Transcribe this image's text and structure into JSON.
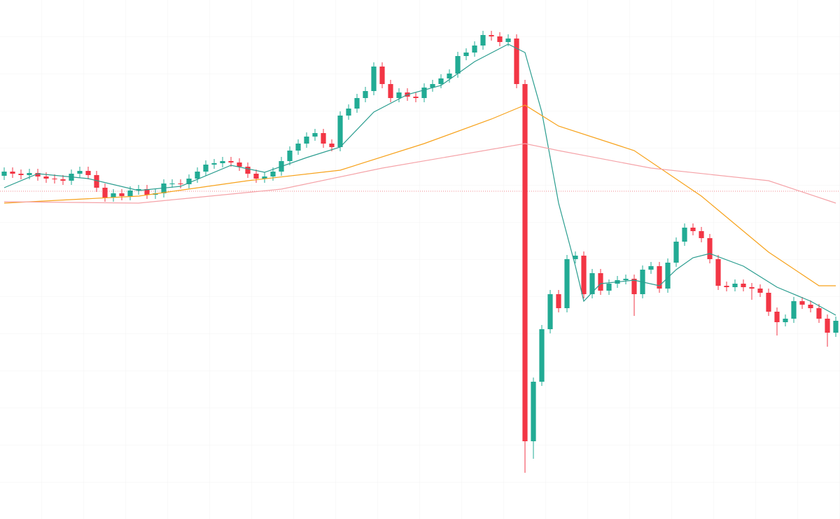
{
  "chart_data": {
    "type": "candlestick",
    "ylim": [
      0,
      741
    ],
    "up_color": "#22ab94",
    "down_color": "#f23645",
    "open": [
      490,
      496,
      493,
      491,
      494,
      489,
      486,
      485,
      483,
      493,
      497,
      491,
      473,
      459,
      465,
      461,
      469,
      471,
      463,
      465,
      479,
      479,
      478,
      486,
      496,
      506,
      508,
      511,
      509,
      503,
      493,
      486,
      489,
      496,
      511,
      526,
      536,
      546,
      551,
      536,
      531,
      576,
      586,
      601,
      611,
      646,
      621,
      601,
      609,
      603,
      601,
      616,
      621,
      629,
      636,
      661,
      666,
      676,
      691,
      689,
      681,
      686,
      621,
      111,
      196,
      271,
      321,
      301,
      371,
      376,
      321,
      351,
      326,
      336,
      341,
      343,
      321,
      356,
      361,
      329,
      366,
      396,
      416,
      411,
      401,
      371,
      333,
      331,
      336,
      331,
      329,
      323,
      296,
      281,
      286,
      311,
      306,
      301,
      286,
      266
    ],
    "high": [
      502,
      502,
      499,
      500,
      500,
      495,
      492,
      491,
      499,
      503,
      503,
      497,
      479,
      471,
      471,
      475,
      477,
      477,
      471,
      485,
      485,
      485,
      492,
      502,
      512,
      514,
      517,
      517,
      515,
      509,
      499,
      495,
      502,
      517,
      532,
      542,
      552,
      557,
      557,
      542,
      582,
      592,
      607,
      617,
      652,
      652,
      627,
      615,
      615,
      609,
      622,
      627,
      635,
      642,
      667,
      672,
      682,
      697,
      697,
      695,
      692,
      692,
      627,
      202,
      277,
      327,
      327,
      377,
      382,
      382,
      357,
      357,
      342,
      347,
      349,
      349,
      362,
      367,
      367,
      372,
      402,
      422,
      422,
      417,
      407,
      377,
      339,
      342,
      342,
      337,
      335,
      329,
      302,
      292,
      317,
      317,
      312,
      307,
      292,
      289
    ],
    "low": [
      484,
      487,
      485,
      485,
      483,
      480,
      479,
      477,
      477,
      487,
      485,
      467,
      453,
      453,
      455,
      455,
      463,
      457,
      457,
      459,
      473,
      472,
      472,
      480,
      490,
      500,
      502,
      503,
      497,
      487,
      480,
      480,
      483,
      490,
      505,
      520,
      530,
      540,
      530,
      525,
      525,
      570,
      580,
      595,
      605,
      615,
      595,
      595,
      597,
      595,
      595,
      610,
      615,
      623,
      630,
      655,
      660,
      670,
      683,
      675,
      675,
      615,
      66,
      86,
      190,
      265,
      295,
      295,
      365,
      315,
      315,
      320,
      320,
      330,
      335,
      290,
      315,
      350,
      323,
      323,
      360,
      390,
      405,
      395,
      365,
      327,
      325,
      325,
      325,
      313,
      317,
      290,
      262,
      275,
      280,
      300,
      295,
      280,
      246,
      260
    ],
    "close": [
      496,
      493,
      491,
      494,
      489,
      486,
      485,
      483,
      493,
      497,
      491,
      473,
      459,
      465,
      461,
      469,
      471,
      463,
      465,
      479,
      479,
      478,
      486,
      496,
      506,
      508,
      511,
      509,
      503,
      493,
      486,
      489,
      496,
      511,
      526,
      536,
      546,
      551,
      536,
      531,
      576,
      586,
      601,
      611,
      646,
      621,
      601,
      609,
      603,
      601,
      616,
      621,
      629,
      636,
      661,
      666,
      676,
      691,
      689,
      681,
      686,
      621,
      111,
      196,
      271,
      321,
      301,
      371,
      376,
      321,
      351,
      326,
      336,
      341,
      343,
      321,
      356,
      361,
      329,
      366,
      396,
      416,
      411,
      401,
      371,
      333,
      331,
      336,
      331,
      329,
      323,
      296,
      281,
      286,
      311,
      306,
      301,
      286,
      266,
      283
    ],
    "lines": [
      {
        "color": "#2a9d8f",
        "x": [
          0,
          4,
          10,
          16,
          21,
          27,
          31,
          36,
          40,
          44,
          48,
          52,
          56,
          60,
          62,
          64,
          66,
          68,
          69,
          71,
          75,
          78,
          80,
          82,
          84,
          88,
          92,
          96,
          99
        ],
        "values": [
          473,
          493,
          486,
          469,
          475,
          505,
          495,
          516,
          531,
          581,
          606,
          619,
          653,
          678,
          666,
          581,
          451,
          361,
          311,
          336,
          341,
          333,
          356,
          373,
          379,
          361,
          331,
          311,
          291
        ]
      },
      {
        "color": "#f7a21b",
        "x": [
          0,
          16,
          29,
          40,
          50,
          58,
          62,
          66,
          75,
          83,
          91,
          97,
          99
        ],
        "values": [
          451,
          461,
          483,
          498,
          536,
          571,
          591,
          561,
          526,
          461,
          381,
          333,
          333
        ]
      },
      {
        "color": "#f5a3a8",
        "x": [
          0,
          16,
          33,
          45,
          62,
          66,
          77,
          91,
          99
        ],
        "values": [
          453,
          451,
          471,
          501,
          536,
          526,
          501,
          483,
          451
        ]
      }
    ],
    "price_line": 468,
    "price_line_color": "#f08a8f"
  }
}
